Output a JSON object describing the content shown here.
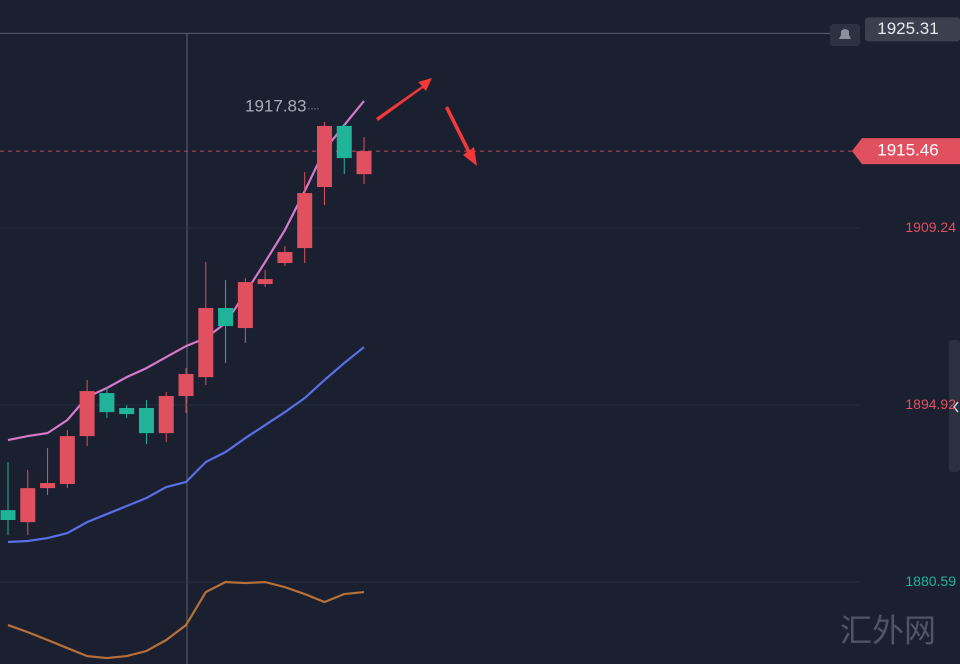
{
  "chart_data": {
    "type": "candlestick",
    "candles": {
      "open": [
        1886.42,
        1885.45,
        1888.2,
        1888.53,
        1892.41,
        1895.89,
        1894.68,
        1894.68,
        1892.65,
        1895.65,
        1897.18,
        1902.77,
        1901.15,
        1904.71,
        1906.41,
        1907.62,
        1912.56,
        1917.5,
        1913.6
      ],
      "high": [
        1890.31,
        1889.66,
        1891.44,
        1892.9,
        1896.94,
        1896.3,
        1894.92,
        1895.32,
        1895.97,
        1897.91,
        1906.49,
        1905.03,
        1905.19,
        1905.84,
        1907.78,
        1913.77,
        1917.83,
        1917.7,
        1916.6
      ],
      "low": [
        1884.4,
        1884.4,
        1887.64,
        1888.2,
        1891.6,
        1893.87,
        1893.87,
        1891.76,
        1891.93,
        1894.27,
        1896.54,
        1898.32,
        1899.94,
        1904.47,
        1906.17,
        1906.41,
        1911.1,
        1913.61,
        1912.8
      ],
      "close": [
        1885.62,
        1888.2,
        1888.61,
        1892.41,
        1896.05,
        1894.35,
        1894.19,
        1892.65,
        1895.65,
        1897.43,
        1902.77,
        1901.31,
        1904.87,
        1905.11,
        1907.3,
        1912.07,
        1917.5,
        1914.9,
        1915.46
      ],
      "up_color": "#e0505f",
      "down_color": "#1fb39a"
    },
    "series": [
      {
        "color": "#d57ac8",
        "values": [
          1892.09,
          1892.41,
          1892.65,
          1893.71,
          1895.57,
          1896.3,
          1897.18,
          1897.91,
          1898.8,
          1899.69,
          1900.34,
          1901.55,
          1903.98,
          1906.49,
          1909.08,
          1912.23,
          1915.55,
          1917.57,
          1919.52
        ]
      },
      {
        "color": "#5a6ee6",
        "values": [
          1883.84,
          1883.92,
          1884.16,
          1884.56,
          1885.45,
          1886.1,
          1886.75,
          1887.4,
          1888.29,
          1888.69,
          1890.31,
          1891.12,
          1892.25,
          1893.3,
          1894.35,
          1895.49,
          1896.94,
          1898.32,
          1899.61
        ]
      },
      {
        "color": "#b8703a",
        "values": [
          1877.12,
          1876.55,
          1875.91,
          1875.26,
          1874.61,
          1874.45,
          1874.61,
          1875.02,
          1875.91,
          1877.12,
          1879.79,
          1880.6,
          1880.52,
          1880.6,
          1880.19,
          1879.63,
          1878.98,
          1879.63,
          1879.79
        ]
      }
    ],
    "ylim": [
      1873.97,
      1927.69
    ],
    "yticks": [
      1909.24,
      1894.92,
      1880.59
    ],
    "ytick_colors": [
      "#e0505f",
      "#e0505f",
      "#1fb39a"
    ],
    "grid": true,
    "last_price": 1915.46,
    "crosshair_price": 1925.31,
    "watermark": "汇外网"
  }
}
